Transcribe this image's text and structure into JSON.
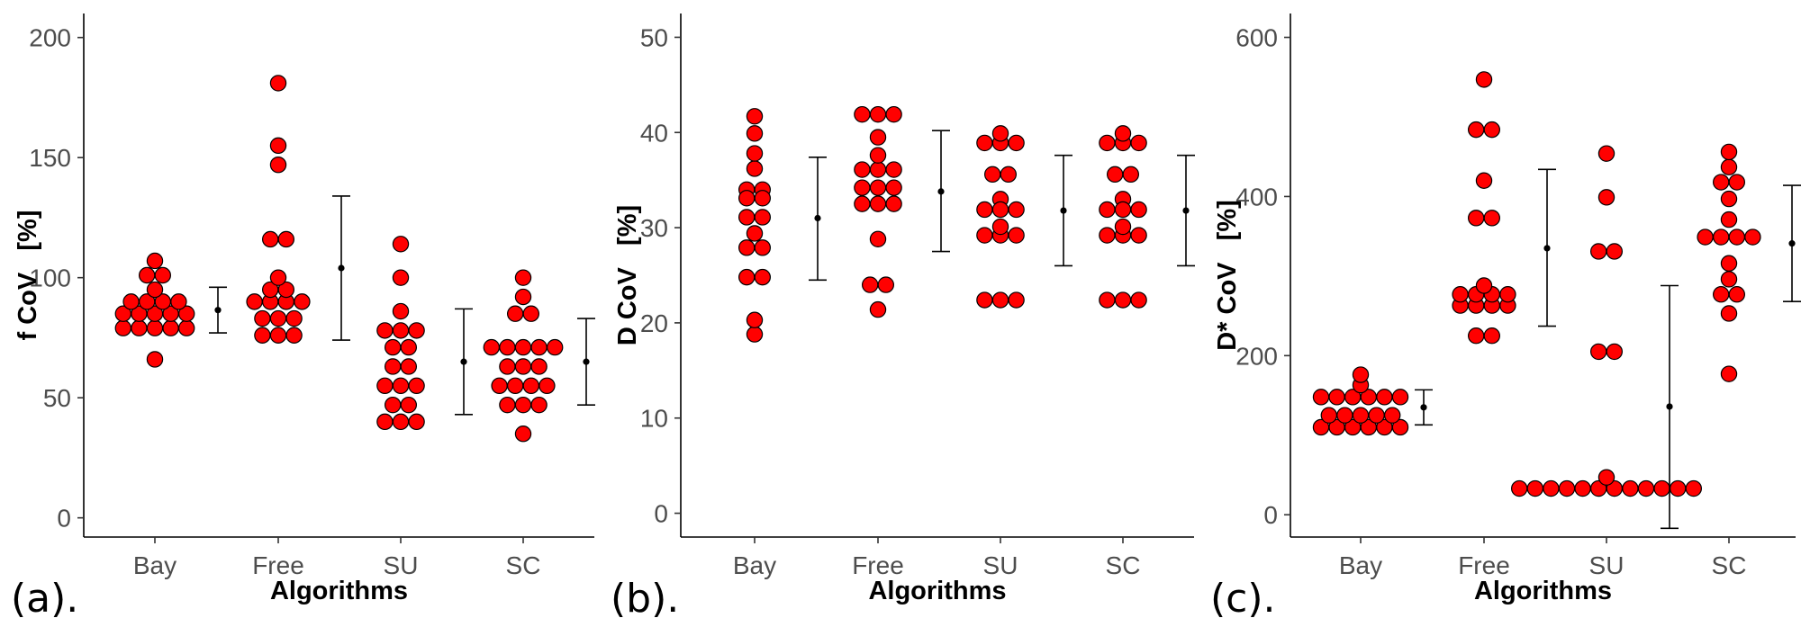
{
  "chart_data": [
    {
      "type": "scatter",
      "panel_label": "(a).",
      "xlabel": "Algorithms",
      "ylabel": "f CoV   [%]",
      "categories": [
        "Bay",
        "Free",
        "SU",
        "SC"
      ],
      "ylim": [
        -8,
        210
      ],
      "yticks": [
        0,
        50,
        100,
        150,
        200
      ],
      "grid": false,
      "point_color": "#ff0000",
      "points": [
        [
          66,
          79,
          79,
          79,
          79,
          79,
          85,
          85,
          85,
          85,
          85,
          90,
          90,
          90,
          90,
          95,
          101,
          101,
          107
        ],
        [
          76,
          76,
          76,
          83,
          83,
          83,
          90,
          90,
          90,
          90,
          95,
          95,
          100,
          116,
          116,
          147,
          155,
          181
        ],
        [
          40,
          40,
          40,
          47,
          47,
          55,
          55,
          55,
          63,
          63,
          71,
          71,
          78,
          78,
          78,
          86,
          100,
          114
        ],
        [
          35,
          47,
          47,
          47,
          55,
          55,
          55,
          55,
          63,
          63,
          63,
          71,
          71,
          71,
          71,
          71,
          85,
          85,
          92,
          100
        ]
      ],
      "summary": [
        {
          "mean": 86.5,
          "low": 77,
          "high": 96
        },
        {
          "mean": 104,
          "low": 74,
          "high": 134
        },
        {
          "mean": 65,
          "low": 43,
          "high": 87
        },
        {
          "mean": 65,
          "low": 47,
          "high": 83
        }
      ]
    },
    {
      "type": "scatter",
      "panel_label": "(b).",
      "xlabel": "Algorithms",
      "ylabel": "D CoV   [%]",
      "categories": [
        "Bay",
        "Free",
        "SU",
        "SC"
      ],
      "ylim": [
        -2.5,
        52.5
      ],
      "yticks": [
        0,
        10,
        20,
        30,
        40,
        50
      ],
      "grid": false,
      "point_color": "#ff0000",
      "points": [
        [
          18.8,
          20.3,
          24.8,
          24.8,
          27.9,
          27.9,
          29.4,
          31.1,
          31.1,
          33.1,
          33.1,
          34.0,
          34.0,
          36.2,
          37.8,
          39.9,
          41.7
        ],
        [
          21.4,
          24.0,
          24.0,
          28.8,
          32.5,
          32.5,
          32.5,
          34.2,
          34.2,
          34.2,
          36.1,
          36.1,
          36.1,
          37.6,
          39.5,
          41.9,
          41.9,
          41.9
        ],
        [
          22.4,
          22.4,
          22.4,
          29.2,
          29.2,
          29.2,
          30.1,
          31.9,
          31.9,
          31.9,
          33.0,
          35.6,
          35.6,
          38.9,
          38.9,
          38.9,
          39.9
        ],
        [
          22.4,
          22.4,
          22.4,
          29.2,
          29.2,
          29.2,
          30.1,
          31.9,
          31.9,
          31.9,
          33.0,
          35.6,
          35.6,
          38.9,
          38.9,
          38.9,
          39.9
        ]
      ],
      "summary": [
        {
          "mean": 31.0,
          "low": 24.5,
          "high": 37.4
        },
        {
          "mean": 33.8,
          "low": 27.5,
          "high": 40.2
        },
        {
          "mean": 31.8,
          "low": 26.0,
          "high": 37.6
        },
        {
          "mean": 31.8,
          "low": 26.0,
          "high": 37.6
        }
      ]
    },
    {
      "type": "scatter",
      "panel_label": "(c).",
      "xlabel": "Algorithms",
      "ylabel": "D* CoV   [%]",
      "categories": [
        "Bay",
        "Free",
        "SU",
        "SC"
      ],
      "ylim": [
        -28,
        630
      ],
      "yticks": [
        0,
        200,
        400,
        600
      ],
      "grid": false,
      "point_color": "#ff0000",
      "points": [
        [
          110,
          110,
          110,
          110,
          110,
          110,
          125,
          125,
          125,
          125,
          125,
          148,
          148,
          148,
          148,
          148,
          148,
          163,
          176
        ],
        [
          225,
          225,
          263,
          263,
          263,
          263,
          277,
          277,
          277,
          277,
          288,
          373,
          373,
          420,
          484,
          484,
          547
        ],
        [
          33,
          33,
          33,
          33,
          33,
          33,
          33,
          33,
          33,
          33,
          33,
          33,
          47,
          205,
          205,
          331,
          331,
          399,
          454
        ],
        [
          177,
          253,
          277,
          277,
          296,
          316,
          349,
          349,
          349,
          349,
          371,
          397,
          418,
          418,
          437,
          456
        ]
      ],
      "summary": [
        {
          "mean": 135,
          "low": 113,
          "high": 157
        },
        {
          "mean": 335,
          "low": 237,
          "high": 434
        },
        {
          "mean": 136,
          "low": -17,
          "high": 288
        },
        {
          "mean": 341,
          "low": 268,
          "high": 414
        }
      ]
    }
  ]
}
